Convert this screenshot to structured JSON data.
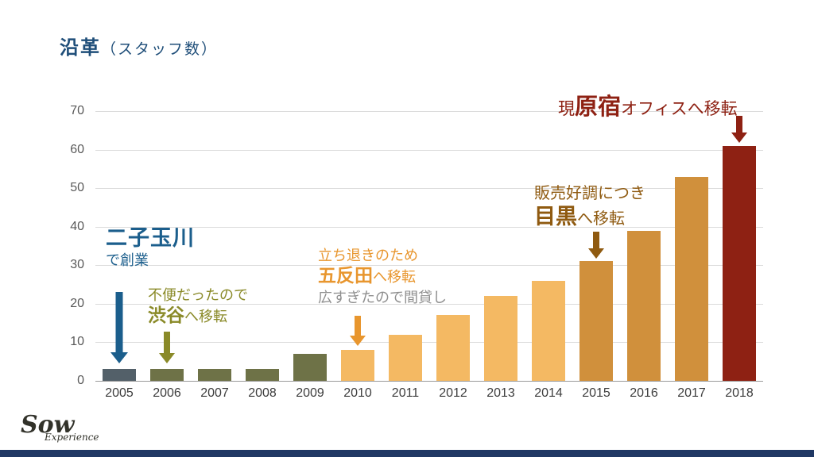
{
  "title": {
    "main": "沿革",
    "sub": "（スタッフ数）"
  },
  "chart_data": {
    "type": "bar",
    "title": "沿革（スタッフ数）",
    "categories": [
      "2005",
      "2006",
      "2007",
      "2008",
      "2009",
      "2010",
      "2011",
      "2012",
      "2013",
      "2014",
      "2015",
      "2016",
      "2017",
      "2018"
    ],
    "values": [
      3,
      3,
      3,
      3,
      7,
      8,
      12,
      17,
      22,
      26,
      31,
      39,
      53,
      61
    ],
    "ylim": [
      0,
      70
    ],
    "yticks": [
      0,
      10,
      20,
      30,
      40,
      50,
      60,
      70
    ],
    "xlabel": "",
    "ylabel": "",
    "grid": "horizontal",
    "legend": "none",
    "bar_palette": [
      "slate",
      "olive",
      "olive",
      "olive",
      "olive",
      "light_orange",
      "light_orange",
      "light_orange",
      "light_orange",
      "light_orange",
      "mid_orange",
      "mid_orange",
      "mid_orange",
      "dark_red"
    ],
    "annotations": [
      {
        "target": "2005",
        "text": "二子玉川で創業"
      },
      {
        "target": "2006",
        "text": "不便だったので渋谷へ移転"
      },
      {
        "target": "2010",
        "text": "立ち退きのため五反田へ移転／広すぎたので間貸し"
      },
      {
        "target": "2015",
        "text": "販売好調につき目黒へ移転"
      },
      {
        "target": "2018",
        "text": "現原宿オフィスへ移転"
      }
    ]
  },
  "notes": {
    "futako": {
      "line1": "二子玉川",
      "line2": "で創業"
    },
    "shibuya": {
      "line1": "不便だったので",
      "place": "渋谷",
      "rest": "へ移転"
    },
    "gotanda": {
      "line1": "立ち退きのため",
      "place": "五反田",
      "rest": "へ移転",
      "line3": "広すぎたので間貸し"
    },
    "meguro": {
      "line1": "販売好調につき",
      "place": "目黒",
      "rest": "へ移転"
    },
    "harajuku": {
      "pre": "現",
      "place": "原宿",
      "rest": "オフィスへ移転"
    }
  },
  "logo": {
    "main": "Sow",
    "sub": "Experience"
  },
  "colors": {
    "title_text": "#1f4e79",
    "slate": "#536069",
    "olive": "#6e7247",
    "light_orange": "#f4b963",
    "mid_orange": "#d0903c",
    "dark_red": "#8e2113",
    "note_blue": "#1b5e8c",
    "note_olive": "#8a8a28",
    "note_orange": "#e8962e",
    "note_gray": "#8f8f8f",
    "note_brown": "#8f5a10",
    "note_red": "#8e2113",
    "gridline": "#dbdbdb",
    "baseline": "#9a9a9a",
    "tick_text": "#595959",
    "xlabel_text": "#3d3d3d",
    "footer_bar": "#203864",
    "logo_text": "#32322a"
  }
}
